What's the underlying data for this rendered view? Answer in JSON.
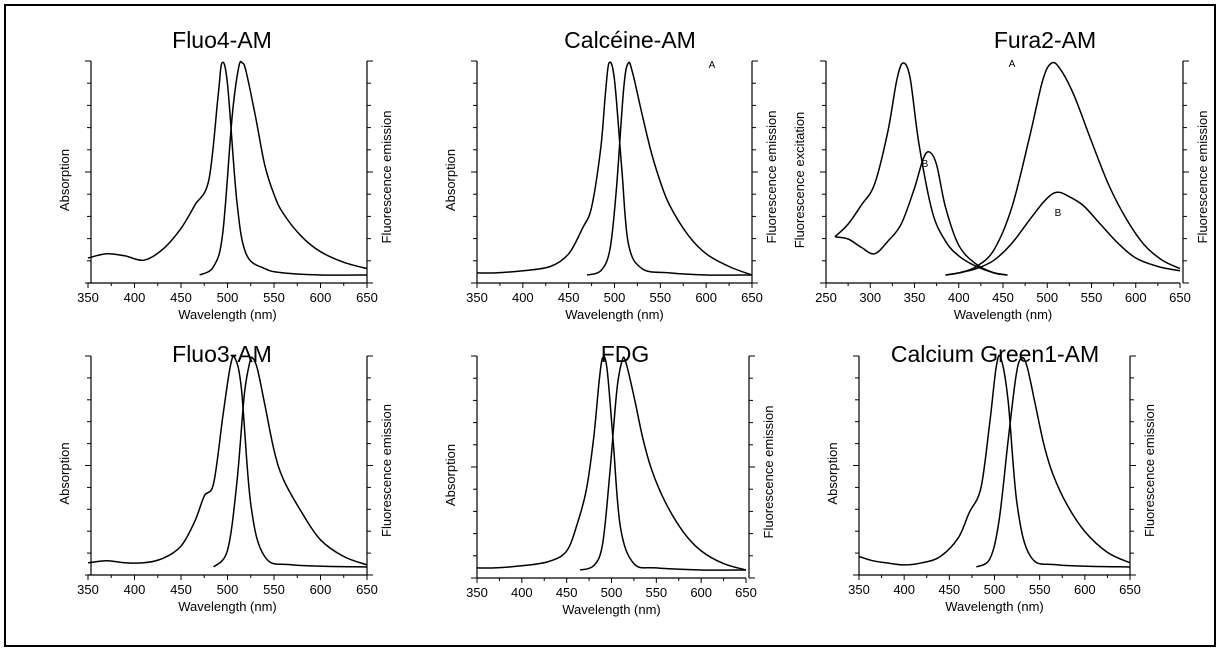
{
  "chart_data": [
    {
      "type": "line",
      "title": "Fluo4-AM",
      "xlabel": "Wavelength (nm)",
      "ylabel_left": "Absorption",
      "ylabel_right": "Fluorescence emission",
      "xlim": [
        350,
        650
      ],
      "ylim": [
        0,
        1
      ],
      "xticks": [
        350,
        400,
        450,
        500,
        550,
        600,
        650
      ],
      "series": [
        {
          "x": [
            350,
            370,
            390,
            410,
            430,
            450,
            465,
            480,
            490,
            494,
            500,
            510,
            520,
            540,
            560,
            600,
            650
          ],
          "y": [
            0.08,
            0.1,
            0.09,
            0.07,
            0.12,
            0.22,
            0.33,
            0.45,
            0.85,
            1.0,
            0.9,
            0.35,
            0.1,
            0.03,
            0.01,
            0.0,
            0.0
          ]
        },
        {
          "x": [
            470,
            485,
            495,
            505,
            512,
            516,
            520,
            530,
            540,
            550,
            560,
            580,
            600,
            625,
            650
          ],
          "y": [
            0.0,
            0.04,
            0.2,
            0.75,
            0.98,
            1.0,
            0.96,
            0.75,
            0.52,
            0.38,
            0.29,
            0.18,
            0.11,
            0.06,
            0.03
          ]
        }
      ]
    },
    {
      "type": "line",
      "title": "Calcéine-AM",
      "xlabel": "Wavelength (nm)",
      "ylabel_left": "Absorption",
      "ylabel_right": "Fluorescence emission",
      "xlim": [
        350,
        650
      ],
      "ylim": [
        0,
        1
      ],
      "xticks": [
        350,
        400,
        450,
        500,
        550,
        600,
        650
      ],
      "series": [
        {
          "x": [
            350,
            370,
            400,
            430,
            450,
            465,
            475,
            485,
            490,
            494,
            500,
            508,
            515,
            530,
            560,
            600,
            650
          ],
          "y": [
            0.01,
            0.01,
            0.02,
            0.04,
            0.1,
            0.22,
            0.32,
            0.6,
            0.85,
            1.0,
            0.92,
            0.5,
            0.15,
            0.03,
            0.01,
            0.0,
            0.0
          ]
        },
        {
          "x": [
            470,
            485,
            495,
            502,
            510,
            515,
            520,
            530,
            540,
            550,
            560,
            580,
            600,
            625,
            650
          ],
          "y": [
            0.0,
            0.02,
            0.12,
            0.4,
            0.88,
            1.0,
            0.95,
            0.76,
            0.58,
            0.44,
            0.33,
            0.19,
            0.1,
            0.04,
            0.0
          ]
        }
      ]
    },
    {
      "type": "line",
      "title": "Fura2-AM",
      "xlabel": "Wavelength (nm)",
      "ylabel_left": "Fluorescence excitation",
      "ylabel_right": "Fluorescence emission",
      "xlim": [
        250,
        650
      ],
      "ylim": [
        0,
        1
      ],
      "xticks": [
        250,
        300,
        350,
        400,
        450,
        500,
        550,
        600,
        650
      ],
      "curve_labels": [
        "A",
        "B",
        "A",
        "B"
      ],
      "series": [
        {
          "name": "A",
          "x": [
            260,
            275,
            290,
            305,
            320,
            330,
            337,
            345,
            355,
            370,
            385,
            400,
            420,
            440,
            455
          ],
          "y": [
            0.18,
            0.24,
            0.33,
            0.43,
            0.68,
            0.92,
            1.0,
            0.93,
            0.62,
            0.3,
            0.16,
            0.09,
            0.04,
            0.01,
            0.0
          ]
        },
        {
          "name": "B",
          "x": [
            260,
            275,
            290,
            305,
            320,
            335,
            350,
            360,
            367,
            375,
            385,
            400,
            420,
            440,
            455
          ],
          "y": [
            0.18,
            0.17,
            0.13,
            0.1,
            0.16,
            0.24,
            0.41,
            0.55,
            0.58,
            0.52,
            0.32,
            0.14,
            0.05,
            0.01,
            0.0
          ]
        },
        {
          "name": "A",
          "x": [
            385,
            400,
            420,
            440,
            460,
            480,
            495,
            505,
            515,
            530,
            550,
            570,
            590,
            610,
            630,
            650
          ],
          "y": [
            0.0,
            0.01,
            0.04,
            0.12,
            0.32,
            0.65,
            0.92,
            1.0,
            0.97,
            0.85,
            0.63,
            0.42,
            0.26,
            0.14,
            0.07,
            0.03
          ]
        },
        {
          "name": "B",
          "x": [
            385,
            400,
            420,
            440,
            460,
            480,
            495,
            505,
            512,
            520,
            540,
            560,
            580,
            600,
            625,
            650
          ],
          "y": [
            0.0,
            0.01,
            0.03,
            0.07,
            0.15,
            0.26,
            0.34,
            0.38,
            0.39,
            0.38,
            0.33,
            0.24,
            0.15,
            0.08,
            0.04,
            0.02
          ]
        }
      ]
    },
    {
      "type": "line",
      "title": "Fluo3-AM",
      "xlabel": "Wavelength (nm)",
      "ylabel_left": "Absorption",
      "ylabel_right": "Fluorescence emission",
      "xlim": [
        350,
        650
      ],
      "ylim": [
        0,
        1
      ],
      "xticks": [
        350,
        400,
        450,
        500,
        550,
        600,
        650
      ],
      "series": [
        {
          "x": [
            350,
            370,
            390,
            410,
            430,
            450,
            465,
            475,
            485,
            495,
            503,
            508,
            515,
            525,
            540,
            570,
            650
          ],
          "y": [
            0.02,
            0.03,
            0.02,
            0.02,
            0.04,
            0.1,
            0.22,
            0.34,
            0.4,
            0.72,
            0.96,
            1.0,
            0.85,
            0.3,
            0.05,
            0.01,
            0.0
          ]
        },
        {
          "x": [
            485,
            500,
            510,
            518,
            524,
            527,
            532,
            540,
            550,
            560,
            580,
            600,
            625,
            650
          ],
          "y": [
            0.0,
            0.08,
            0.4,
            0.82,
            0.98,
            1.0,
            0.95,
            0.78,
            0.56,
            0.42,
            0.26,
            0.13,
            0.05,
            0.01
          ]
        }
      ]
    },
    {
      "type": "line",
      "title": "FDG",
      "xlabel": "Wavelength (nm)",
      "ylabel_left": "Absorption",
      "ylabel_right": "Fluorescence emission",
      "xlim": [
        350,
        650
      ],
      "ylim": [
        0,
        1
      ],
      "xticks": [
        350,
        400,
        450,
        500,
        550,
        600,
        650
      ],
      "series": [
        {
          "x": [
            350,
            370,
            400,
            430,
            450,
            462,
            472,
            480,
            486,
            490,
            495,
            502,
            510,
            525,
            550,
            600,
            650
          ],
          "y": [
            0.01,
            0.01,
            0.02,
            0.04,
            0.09,
            0.22,
            0.38,
            0.62,
            0.88,
            1.0,
            0.95,
            0.6,
            0.2,
            0.03,
            0.01,
            0.0,
            0.0
          ]
        },
        {
          "x": [
            465,
            480,
            490,
            498,
            506,
            512,
            516,
            525,
            535,
            545,
            560,
            580,
            600,
            625,
            650
          ],
          "y": [
            0.0,
            0.02,
            0.12,
            0.45,
            0.85,
            0.99,
            0.98,
            0.82,
            0.62,
            0.47,
            0.32,
            0.18,
            0.09,
            0.03,
            0.0
          ]
        }
      ]
    },
    {
      "type": "line",
      "title": "Calcium Green1-AM",
      "xlabel": "Wavelength (nm)",
      "ylabel_left": "Absorption",
      "ylabel_right": "Fluorescence emission",
      "xlim": [
        350,
        650
      ],
      "ylim": [
        0,
        1
      ],
      "xticks": [
        350,
        400,
        450,
        500,
        550,
        600,
        650
      ],
      "series": [
        {
          "x": [
            350,
            365,
            380,
            400,
            420,
            440,
            460,
            472,
            485,
            495,
            502,
            507,
            515,
            525,
            540,
            570,
            650
          ],
          "y": [
            0.05,
            0.03,
            0.02,
            0.01,
            0.02,
            0.05,
            0.14,
            0.26,
            0.38,
            0.7,
            0.96,
            1.0,
            0.8,
            0.3,
            0.05,
            0.01,
            0.0
          ]
        },
        {
          "x": [
            480,
            495,
            505,
            515,
            524,
            530,
            536,
            545,
            555,
            565,
            580,
            600,
            625,
            650
          ],
          "y": [
            0.0,
            0.04,
            0.22,
            0.6,
            0.92,
            1.0,
            0.96,
            0.78,
            0.58,
            0.44,
            0.3,
            0.17,
            0.07,
            0.02
          ]
        }
      ]
    }
  ]
}
